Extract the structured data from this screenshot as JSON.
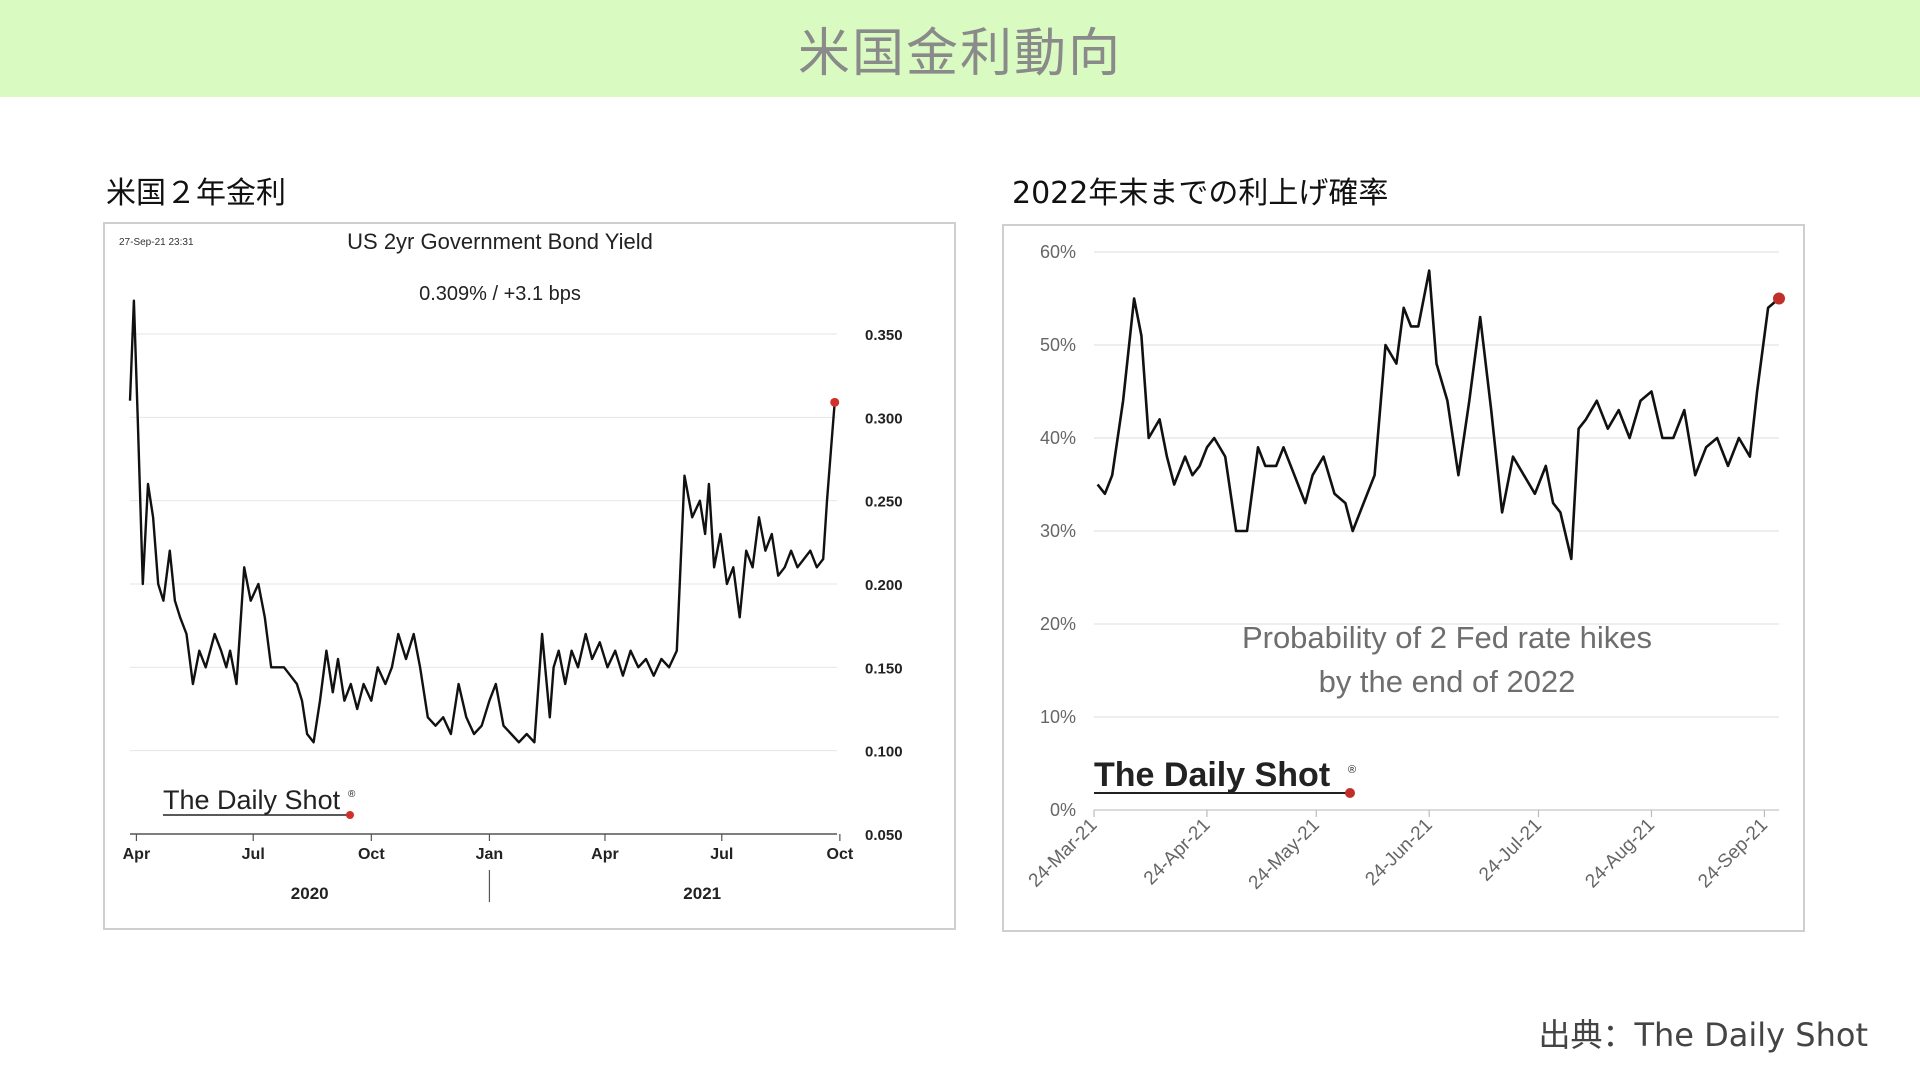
{
  "page": {
    "title": "米国金利動向",
    "source": "出典：The Daily Shot",
    "left_label": "米国２年金利",
    "right_label": "2022年末までの利上げ確率"
  },
  "chart_data": [
    {
      "type": "line",
      "title": "US 2yr Government Bond Yield",
      "subtitle": "0.309%  /  +3.1 bps",
      "timestamp": "27-Sep-21 23:31",
      "brand": "The Daily Shot",
      "brand_mark": "®",
      "yticks": [
        "0.350",
        "0.300",
        "0.250",
        "0.200",
        "0.150",
        "0.100",
        "0.050"
      ],
      "ytick_values": [
        0.35,
        0.3,
        0.25,
        0.2,
        0.15,
        0.1,
        0.05
      ],
      "ylim": [
        0.05,
        0.38
      ],
      "xticks": [
        "Apr",
        "Jul",
        "Oct",
        "Jan",
        "Apr",
        "Jul",
        "Oct"
      ],
      "xtick_dates": [
        "2020-04-01",
        "2020-07-01",
        "2020-10-01",
        "2021-01-01",
        "2021-04-01",
        "2021-07-01",
        "2021-10-01"
      ],
      "years": [
        "2020",
        "2021"
      ],
      "xlim": [
        "2020-03-27",
        "2021-10-05"
      ],
      "line_color": "#111111",
      "marker_color": "#d0312d",
      "grid": true,
      "last_point": {
        "date": "2021-09-27",
        "value": 0.309
      },
      "series": [
        {
          "x": [
            "2020-03-27",
            "2020-03-30",
            "2020-04-02",
            "2020-04-06",
            "2020-04-10",
            "2020-04-14",
            "2020-04-18",
            "2020-04-22",
            "2020-04-27",
            "2020-05-01",
            "2020-05-05",
            "2020-05-10",
            "2020-05-15",
            "2020-05-20",
            "2020-05-25",
            "2020-06-01",
            "2020-06-06",
            "2020-06-10",
            "2020-06-13",
            "2020-06-18",
            "2020-06-24",
            "2020-06-29",
            "2020-07-05",
            "2020-07-10",
            "2020-07-15",
            "2020-07-20",
            "2020-07-25",
            "2020-07-30",
            "2020-08-04",
            "2020-08-08",
            "2020-08-12",
            "2020-08-17",
            "2020-08-22",
            "2020-08-27",
            "2020-09-01",
            "2020-09-05",
            "2020-09-10",
            "2020-09-15",
            "2020-09-20",
            "2020-09-25",
            "2020-10-01",
            "2020-10-06",
            "2020-10-12",
            "2020-10-17",
            "2020-10-22",
            "2020-10-28",
            "2020-11-03",
            "2020-11-08",
            "2020-11-14",
            "2020-11-20",
            "2020-11-26",
            "2020-12-02",
            "2020-12-08",
            "2020-12-14",
            "2020-12-20",
            "2020-12-26",
            "2021-01-01",
            "2021-01-06",
            "2021-01-12",
            "2021-01-18",
            "2021-01-24",
            "2021-01-30",
            "2021-02-05",
            "2021-02-11",
            "2021-02-17",
            "2021-02-20",
            "2021-02-24",
            "2021-03-01",
            "2021-03-06",
            "2021-03-11",
            "2021-03-17",
            "2021-03-22",
            "2021-03-28",
            "2021-04-03",
            "2021-04-09",
            "2021-04-15",
            "2021-04-21",
            "2021-04-27",
            "2021-05-03",
            "2021-05-09",
            "2021-05-15",
            "2021-05-21",
            "2021-05-27",
            "2021-06-02",
            "2021-06-08",
            "2021-06-14",
            "2021-06-18",
            "2021-06-21",
            "2021-06-25",
            "2021-06-30",
            "2021-07-05",
            "2021-07-10",
            "2021-07-15",
            "2021-07-20",
            "2021-07-25",
            "2021-07-30",
            "2021-08-04",
            "2021-08-09",
            "2021-08-14",
            "2021-08-19",
            "2021-08-24",
            "2021-08-29",
            "2021-09-03",
            "2021-09-08",
            "2021-09-13",
            "2021-09-18",
            "2021-09-21",
            "2021-09-24",
            "2021-09-27"
          ],
          "values": [
            0.31,
            0.37,
            0.3,
            0.2,
            0.26,
            0.24,
            0.2,
            0.19,
            0.22,
            0.19,
            0.18,
            0.17,
            0.14,
            0.16,
            0.15,
            0.17,
            0.16,
            0.15,
            0.16,
            0.14,
            0.21,
            0.19,
            0.2,
            0.18,
            0.15,
            0.15,
            0.15,
            0.145,
            0.14,
            0.13,
            0.11,
            0.105,
            0.13,
            0.16,
            0.135,
            0.155,
            0.13,
            0.14,
            0.125,
            0.14,
            0.13,
            0.15,
            0.14,
            0.15,
            0.17,
            0.155,
            0.17,
            0.15,
            0.12,
            0.115,
            0.12,
            0.11,
            0.14,
            0.12,
            0.11,
            0.115,
            0.13,
            0.14,
            0.115,
            0.11,
            0.105,
            0.11,
            0.105,
            0.17,
            0.12,
            0.15,
            0.16,
            0.14,
            0.16,
            0.15,
            0.17,
            0.155,
            0.165,
            0.15,
            0.16,
            0.145,
            0.16,
            0.15,
            0.155,
            0.145,
            0.155,
            0.15,
            0.16,
            0.265,
            0.24,
            0.25,
            0.23,
            0.26,
            0.21,
            0.23,
            0.2,
            0.21,
            0.18,
            0.22,
            0.21,
            0.24,
            0.22,
            0.23,
            0.205,
            0.21,
            0.22,
            0.21,
            0.215,
            0.22,
            0.21,
            0.215,
            0.25,
            0.28,
            0.309
          ]
        }
      ]
    },
    {
      "type": "line",
      "title": "Probability of 2 Fed rate hikes",
      "subtitle": "by the end of 2022",
      "brand": "The Daily Shot",
      "brand_mark": "®",
      "yticks": [
        "60%",
        "50%",
        "40%",
        "30%",
        "20%",
        "10%",
        "0%"
      ],
      "ytick_values": [
        60,
        50,
        40,
        30,
        20,
        10,
        0
      ],
      "ylim": [
        0,
        60
      ],
      "xticks": [
        "24-Mar-21",
        "24-Apr-21",
        "24-May-21",
        "24-Jun-21",
        "24-Jul-21",
        "24-Aug-21",
        "24-Sep-21"
      ],
      "xtick_dates": [
        "2021-03-24",
        "2021-04-24",
        "2021-05-24",
        "2021-06-24",
        "2021-07-24",
        "2021-08-24",
        "2021-09-24"
      ],
      "xlim": [
        "2021-03-24",
        "2021-09-28"
      ],
      "line_color": "#111111",
      "marker_color": "#c0302a",
      "grid": true,
      "last_point": {
        "date": "2021-09-28",
        "value": 55
      },
      "series": [
        {
          "x": [
            "2021-03-25",
            "2021-03-27",
            "2021-03-29",
            "2021-04-01",
            "2021-04-04",
            "2021-04-06",
            "2021-04-08",
            "2021-04-11",
            "2021-04-13",
            "2021-04-15",
            "2021-04-18",
            "2021-04-20",
            "2021-04-22",
            "2021-04-24",
            "2021-04-26",
            "2021-04-29",
            "2021-05-02",
            "2021-05-05",
            "2021-05-08",
            "2021-05-10",
            "2021-05-13",
            "2021-05-15",
            "2021-05-18",
            "2021-05-21",
            "2021-05-23",
            "2021-05-26",
            "2021-05-29",
            "2021-06-01",
            "2021-06-03",
            "2021-06-06",
            "2021-06-09",
            "2021-06-12",
            "2021-06-15",
            "2021-06-17",
            "2021-06-19",
            "2021-06-21",
            "2021-06-24",
            "2021-06-26",
            "2021-06-29",
            "2021-07-02",
            "2021-07-05",
            "2021-07-08",
            "2021-07-11",
            "2021-07-14",
            "2021-07-17",
            "2021-07-20",
            "2021-07-23",
            "2021-07-26",
            "2021-07-28",
            "2021-07-30",
            "2021-08-02",
            "2021-08-04",
            "2021-08-06",
            "2021-08-09",
            "2021-08-12",
            "2021-08-15",
            "2021-08-18",
            "2021-08-21",
            "2021-08-24",
            "2021-08-27",
            "2021-08-30",
            "2021-09-02",
            "2021-09-05",
            "2021-09-08",
            "2021-09-11",
            "2021-09-14",
            "2021-09-17",
            "2021-09-20",
            "2021-09-22",
            "2021-09-25",
            "2021-09-28"
          ],
          "values": [
            35,
            34,
            36,
            44,
            55,
            51,
            40,
            42,
            38,
            35,
            38,
            36,
            37,
            39,
            40,
            38,
            30,
            30,
            39,
            37,
            37,
            39,
            36,
            33,
            36,
            38,
            34,
            33,
            30,
            33,
            36,
            50,
            48,
            54,
            52,
            52,
            58,
            48,
            44,
            36,
            44,
            53,
            43,
            32,
            38,
            36,
            34,
            37,
            33,
            32,
            27,
            41,
            42,
            44,
            41,
            43,
            40,
            44,
            45,
            40,
            40,
            43,
            36,
            39,
            40,
            37,
            40,
            38,
            45,
            54,
            55
          ]
        }
      ]
    }
  ]
}
